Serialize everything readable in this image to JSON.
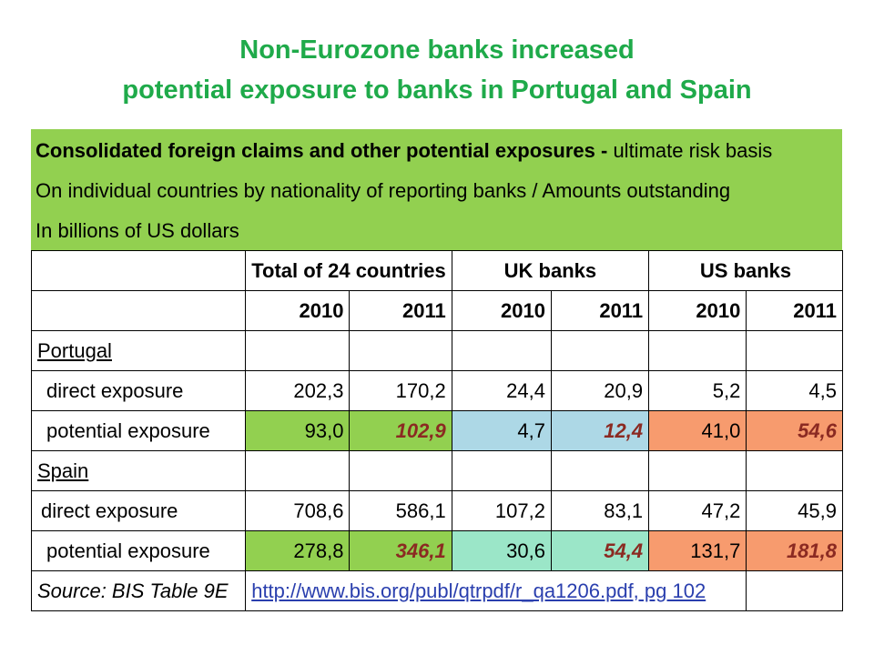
{
  "title": {
    "line1": "Non-Eurozone banks increased",
    "line2": "potential exposure to banks in Portugal and Spain"
  },
  "header": {
    "line1_bold": "Consolidated foreign claims and other potential exposures -",
    "line1_rest": " ultimate risk basis",
    "line2": "On individual countries by nationality of reporting banks / Amounts outstanding",
    "line3": "In billions of US dollars"
  },
  "groups": [
    "Total of 24 countries",
    "UK banks",
    "US banks"
  ],
  "years": [
    "2010",
    "2011",
    "2010",
    "2011",
    "2010",
    "2011"
  ],
  "portugal": {
    "label": "Portugal",
    "direct": {
      "label": "direct exposure",
      "values": [
        "202,3",
        "170,2",
        "24,4",
        "20,9",
        "5,2",
        "4,5"
      ]
    },
    "potential": {
      "label": "potential exposure",
      "values": [
        "93,0",
        "102,9",
        "4,7",
        "12,4",
        "41,0",
        "54,6"
      ]
    }
  },
  "spain": {
    "label": "Spain",
    "direct": {
      "label": "direct exposure",
      "values": [
        "708,6",
        "586,1",
        "107,2",
        "83,1",
        "47,2",
        "45,9"
      ]
    },
    "potential": {
      "label": "potential exposure",
      "values": [
        "278,8",
        "346,1",
        "30,6",
        "54,4",
        "131,7",
        "181,8"
      ]
    }
  },
  "source": {
    "label": "Source: BIS Table 9E",
    "link": "http://www.bis.org/publ/qtrpdf/r_qa1206.pdf, pg 102"
  },
  "colors": {
    "title": "#1faa4a",
    "header_band": "#92d050",
    "total_fill": "#92d050",
    "uk_fill_portugal": "#add8e6",
    "uk_fill_spain": "#9be6c8",
    "us_fill": "#f79b6e",
    "highlight_text": "#8b2a22"
  }
}
